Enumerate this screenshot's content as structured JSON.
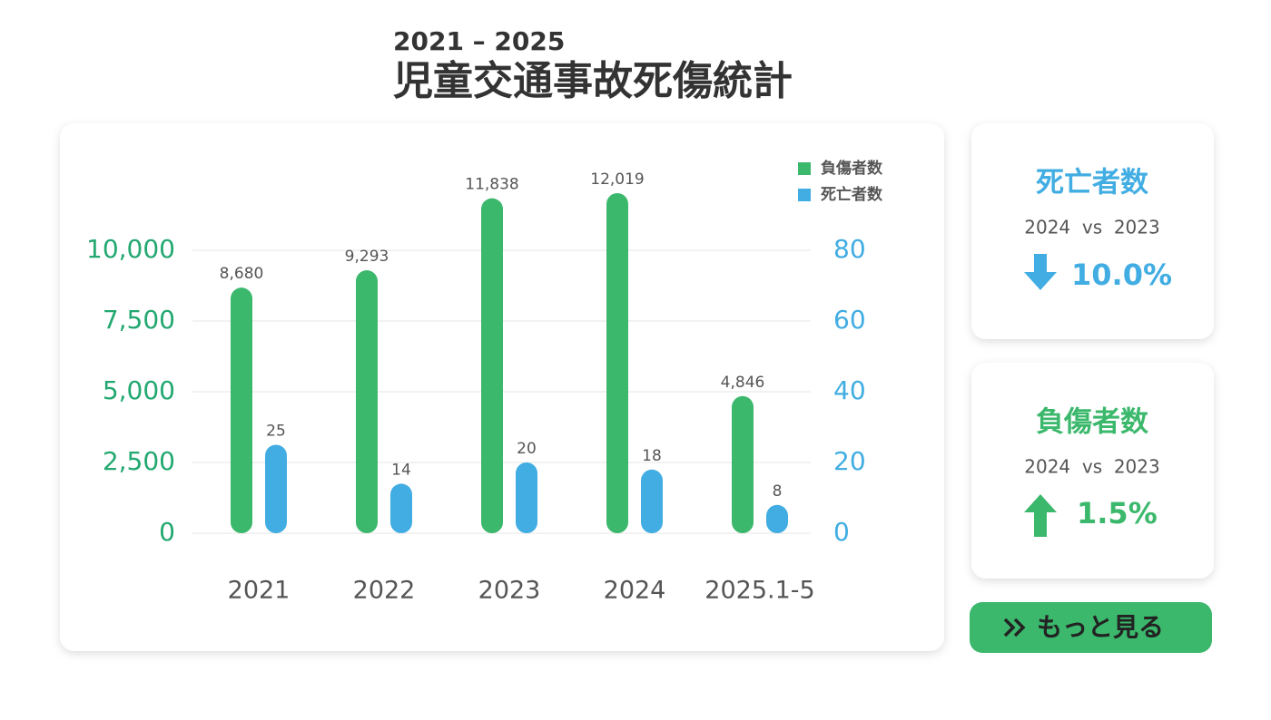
{
  "header": {
    "subtitle": "2021 – 2025",
    "title": "児童交通事故死傷統計"
  },
  "chart_data": {
    "type": "bar",
    "categories": [
      "2021",
      "2022",
      "2023",
      "2024",
      "2025.1-5"
    ],
    "series": [
      {
        "name": "負傷者数",
        "color": "#3bb86c",
        "values": [
          8680,
          9293,
          11838,
          12019,
          4846
        ],
        "value_labels": [
          "8,680",
          "9,293",
          "11,838",
          "12,019",
          "4,846"
        ]
      },
      {
        "name": "死亡者数",
        "color": "#41ade2",
        "values": [
          25,
          14,
          20,
          18,
          8
        ],
        "axis": "y2"
      }
    ],
    "ylim": [
      0,
      12500
    ],
    "yticks": [
      0,
      {
        "value": 2500,
        "label": "2,500"
      },
      {
        "value": 5000,
        "label": "5,000"
      },
      {
        "value": 7500,
        "label": "7,500"
      },
      {
        "value": 10000,
        "label": "10,000"
      }
    ],
    "y2lim": [
      0,
      100
    ],
    "y2ticks": [
      0,
      20,
      40,
      60,
      80
    ],
    "grid": true,
    "legend": "top-right"
  },
  "cards": [
    {
      "title": "死亡者数",
      "comparison": "2024  vs  2023",
      "change": "10.0%",
      "direction": "down",
      "color": "#41ade2"
    },
    {
      "title": "負傷者数",
      "comparison": "2024  vs  2023",
      "change": "1.5%",
      "direction": "up",
      "color": "#3bb86c"
    }
  ],
  "button": {
    "label": "もっと見る"
  }
}
